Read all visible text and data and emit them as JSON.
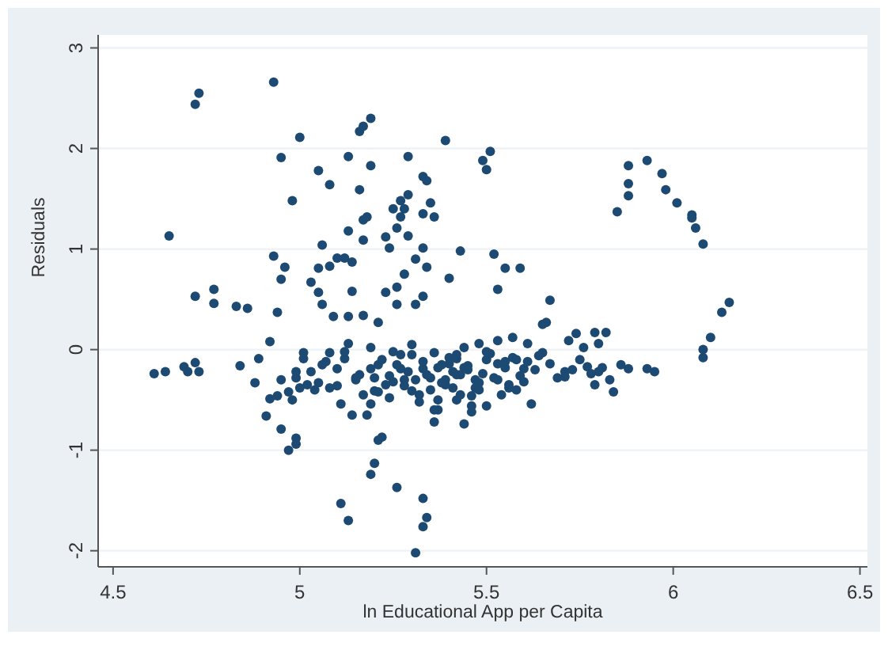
{
  "chart_data": {
    "type": "scatter",
    "xlabel": "ln Educational App per Capita",
    "ylabel": "Residuals",
    "xlim": [
      4.46,
      6.52
    ],
    "ylim": [
      -2.16,
      3.13
    ],
    "xticks": [
      4.5,
      5,
      5.5,
      6,
      6.5
    ],
    "yticks": [
      -2,
      -1,
      0,
      1,
      2,
      3
    ],
    "grid": "y",
    "marker": "circle",
    "series": [
      {
        "color": "#1c4a73",
        "x": [
          4.73,
          4.72,
          4.93,
          4.65,
          5.0,
          4.95,
          4.98,
          5.05,
          5.08,
          5.13,
          5.16,
          5.17,
          5.19,
          5.16,
          5.19,
          5.29,
          5.39,
          5.33,
          5.34,
          5.35,
          5.36,
          5.33,
          5.25,
          5.27,
          5.29,
          5.27,
          5.26,
          5.29,
          5.28,
          5.13,
          5.17,
          5.18,
          5.17,
          5.23,
          5.24,
          5.33,
          5.43,
          5.06,
          4.93,
          4.96,
          4.95,
          5.4,
          5.05,
          5.08,
          5.1,
          5.12,
          5.14,
          5.28,
          5.31,
          5.34,
          5.03,
          5.05,
          5.14,
          5.23,
          5.26,
          5.33,
          4.72,
          4.77,
          4.77,
          4.83,
          4.86,
          4.94,
          5.06,
          5.09,
          5.13,
          5.17,
          5.26,
          5.31,
          5.21,
          5.49,
          5.51,
          5.5,
          5.52,
          5.55,
          5.59,
          5.53,
          5.67,
          5.66,
          5.85,
          5.88,
          5.88,
          5.88,
          5.93,
          5.97,
          5.98,
          6.01,
          6.05,
          6.05,
          6.06,
          6.08,
          6.13,
          6.15,
          6.1,
          6.08,
          6.08,
          5.93,
          5.95,
          5.88,
          5.84,
          5.82,
          5.79,
          5.74,
          5.72,
          5.76,
          5.8,
          5.77,
          5.8,
          5.71,
          5.79,
          5.71,
          5.62,
          5.65,
          5.65,
          5.61,
          5.57,
          5.53,
          5.48,
          5.44,
          5.6,
          5.56,
          5.5,
          5.46,
          5.42,
          5.53,
          5.47,
          5.4,
          4.61,
          4.64,
          4.69,
          4.7,
          4.72,
          4.73,
          4.84,
          4.89,
          4.88,
          4.92,
          4.91,
          4.95,
          4.97,
          4.99,
          4.99,
          4.92,
          4.94,
          4.97,
          4.98,
          4.95,
          5.01,
          5.01,
          4.99,
          5.03,
          5.05,
          5.08,
          5.1,
          5.08,
          5.11,
          5.14,
          5.18,
          5.19,
          5.2,
          5.21,
          5.22,
          5.2,
          5.19,
          5.26,
          5.11,
          5.13,
          5.33,
          5.34,
          5.33,
          5.31,
          5.36,
          5.13,
          5.19,
          5.25,
          5.3,
          5.27,
          5.33,
          5.39,
          5.42,
          5.16,
          5.23,
          5.3,
          5.37,
          5.46,
          5.12,
          5.19,
          5.36,
          5.44,
          5.43,
          5.35,
          5.38,
          5.41,
          5.45,
          5.5,
          5.32,
          5.28,
          5.37,
          5.42,
          5.48,
          5.55,
          5.58,
          5.24,
          5.21,
          5.15,
          5.07,
          5.2,
          5.22,
          5.25,
          5.27,
          5.29,
          5.31,
          5.33,
          5.35,
          5.37,
          5.39,
          5.41,
          5.43,
          5.45,
          5.47,
          5.49,
          5.51,
          5.53,
          5.55,
          5.57,
          5.59,
          5.61,
          5.63,
          5.21,
          5.24,
          5.26,
          5.28,
          5.3,
          5.32,
          5.34,
          5.36,
          5.38,
          5.4,
          5.42,
          5.44,
          5.46,
          5.48,
          5.5,
          5.52,
          5.54,
          5.56,
          5.58,
          5.6,
          5.64,
          5.67,
          5.69,
          5.73,
          5.75,
          5.78,
          5.81,
          5.83,
          5.86,
          5.1,
          5.12,
          5.15,
          5.17,
          5.04,
          5.06,
          5.02,
          4.99,
          5.0
        ],
        "values": [
          2.55,
          2.44,
          2.66,
          1.13,
          2.11,
          1.91,
          1.48,
          1.78,
          1.64,
          1.92,
          1.59,
          2.22,
          2.3,
          2.17,
          1.83,
          1.92,
          2.08,
          1.72,
          1.68,
          1.46,
          1.32,
          1.35,
          1.4,
          1.48,
          1.54,
          1.32,
          1.21,
          1.13,
          1.4,
          1.18,
          1.29,
          1.32,
          1.09,
          1.12,
          1.01,
          1.01,
          0.98,
          1.04,
          0.93,
          0.82,
          0.7,
          0.71,
          0.81,
          0.83,
          0.91,
          0.91,
          0.87,
          0.75,
          0.9,
          0.82,
          0.67,
          0.57,
          0.58,
          0.57,
          0.62,
          0.53,
          0.53,
          0.6,
          0.46,
          0.43,
          0.41,
          0.37,
          0.45,
          0.33,
          0.33,
          0.34,
          0.45,
          0.45,
          0.27,
          1.88,
          1.97,
          1.79,
          0.95,
          0.81,
          0.81,
          0.6,
          0.49,
          0.27,
          1.37,
          1.65,
          1.83,
          1.53,
          1.88,
          1.75,
          1.59,
          1.46,
          1.34,
          1.31,
          1.21,
          1.05,
          0.37,
          0.47,
          0.12,
          0.0,
          -0.08,
          -0.19,
          -0.22,
          -0.19,
          -0.42,
          0.17,
          0.17,
          0.16,
          0.09,
          0.02,
          0.06,
          -0.17,
          -0.22,
          -0.27,
          -0.35,
          -0.22,
          -0.54,
          0.25,
          -0.03,
          0.06,
          0.12,
          0.09,
          0.06,
          -0.74,
          -0.19,
          -0.35,
          -0.56,
          -0.46,
          -0.25,
          -0.14,
          -0.3,
          -0.14,
          -0.24,
          -0.22,
          -0.17,
          -0.22,
          -0.13,
          -0.22,
          -0.16,
          -0.09,
          -0.33,
          0.08,
          -0.66,
          -0.79,
          -1.0,
          -0.88,
          -0.94,
          -0.49,
          -0.46,
          -0.42,
          -0.5,
          -0.3,
          -0.03,
          -0.09,
          -0.22,
          -0.22,
          -0.33,
          -0.03,
          -0.19,
          -0.38,
          -0.54,
          -0.65,
          -0.65,
          -0.54,
          -0.41,
          -0.9,
          -0.87,
          -1.13,
          -1.24,
          -1.37,
          -1.53,
          -1.7,
          -1.48,
          -1.67,
          -1.76,
          -2.02,
          -0.72,
          0.06,
          0.02,
          -0.02,
          0.05,
          -0.19,
          -0.19,
          -0.3,
          -0.09,
          -0.25,
          -0.35,
          -0.41,
          -0.5,
          -0.56,
          -0.09,
          -0.19,
          -0.03,
          0.02,
          -0.25,
          -0.28,
          -0.15,
          -0.38,
          -0.2,
          -0.1,
          -0.45,
          -0.3,
          -0.6,
          -0.05,
          -0.33,
          -0.12,
          -0.4,
          -0.26,
          -0.15,
          -0.3,
          -0.12,
          -0.28,
          -0.1,
          -0.32,
          -0.05,
          -0.22,
          -0.3,
          -0.12,
          -0.4,
          -0.18,
          -0.35,
          -0.22,
          -0.45,
          -0.16,
          -0.38,
          -0.24,
          -0.04,
          -0.3,
          -0.18,
          -0.08,
          -0.26,
          -0.12,
          -0.2,
          -0.42,
          -0.48,
          -0.15,
          -0.36,
          -0.05,
          -0.52,
          -0.25,
          -0.6,
          -0.33,
          -0.08,
          -0.5,
          -0.18,
          -0.62,
          -0.4,
          -0.02,
          -0.28,
          -0.45,
          -0.38,
          -0.1,
          -0.32,
          -0.06,
          -0.14,
          -0.28,
          -0.2,
          -0.1,
          -0.24,
          -0.18,
          -0.3,
          -0.15,
          -0.36,
          -0.02,
          -0.28,
          -0.45,
          -0.4,
          -0.15,
          -0.35,
          -0.28,
          -0.38
        ]
      }
    ]
  }
}
